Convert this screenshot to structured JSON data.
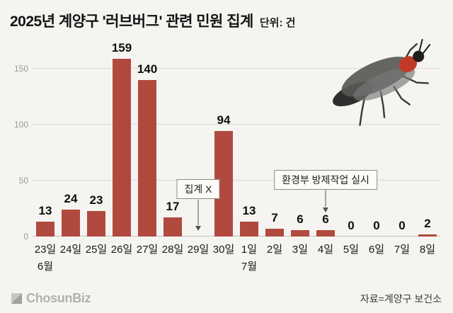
{
  "header": {
    "title": "2025년 계양구 '러브버그' 관련 민원 집계",
    "unit_label": "단위: 건"
  },
  "chart_data": {
    "type": "bar",
    "title": "2025년 계양구 '러브버그' 관련 민원 집계",
    "xlabel": "",
    "ylabel": "",
    "categories": [
      "23일",
      "24일",
      "25일",
      "26일",
      "27일",
      "28일",
      "29일",
      "30일",
      "1일",
      "2일",
      "3일",
      "4일",
      "5일",
      "6일",
      "7일",
      "8일"
    ],
    "values": [
      13,
      24,
      23,
      159,
      140,
      17,
      null,
      94,
      13,
      7,
      6,
      6,
      0,
      0,
      0,
      2
    ],
    "month_labels": [
      {
        "index": 0,
        "label": "6월"
      },
      {
        "index": 8,
        "label": "7월"
      }
    ],
    "yticks": [
      0,
      50,
      100,
      150
    ],
    "ylim": [
      0,
      170
    ],
    "grid": true,
    "legend": false,
    "bar_color": "#b04a3e",
    "annotations": [
      {
        "text": "집계 X",
        "target_index": 6
      },
      {
        "text": "환경부 방제작업 실시",
        "target_index": 11
      }
    ]
  },
  "footer": {
    "logo_text": "ChosunBiz",
    "source": "자료=계양구 보건소"
  }
}
